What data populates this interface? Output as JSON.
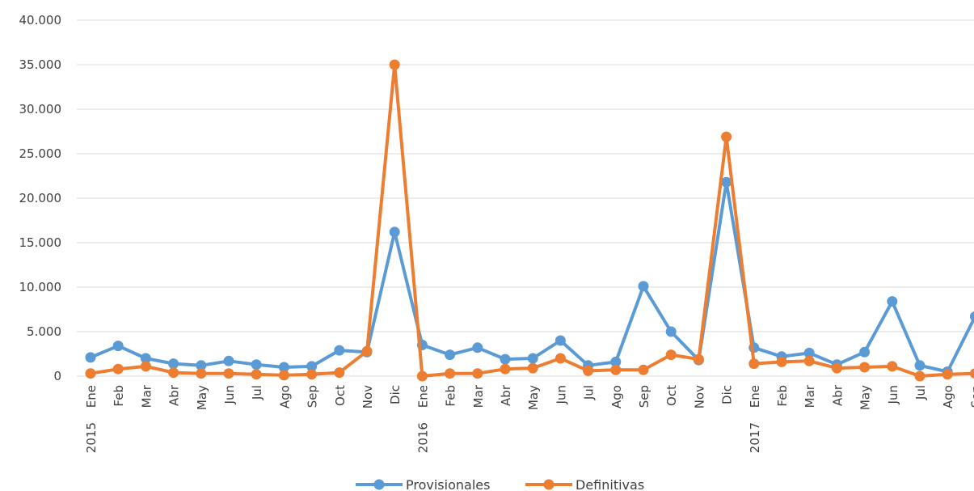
{
  "chart_data": {
    "type": "line",
    "title": "",
    "xlabel": "",
    "ylabel": "",
    "ylim": [
      0,
      40000
    ],
    "yticks": [
      0,
      5000,
      10000,
      15000,
      20000,
      25000,
      30000,
      35000,
      40000
    ],
    "ytick_labels": [
      "0",
      "5.000",
      "10.000",
      "15.000",
      "20.000",
      "25.000",
      "30.000",
      "35.000",
      "40.000"
    ],
    "grid": true,
    "legend_position": "bottom",
    "categories": [
      "Ene",
      "Feb",
      "Mar",
      "Abr",
      "May",
      "Jun",
      "Jul",
      "Ago",
      "Sep",
      "Oct",
      "Nov",
      "Dic",
      "Ene",
      "Feb",
      "Mar",
      "Abr",
      "May",
      "Jun",
      "Jul",
      "Ago",
      "Sep",
      "Oct",
      "Nov",
      "Dic",
      "Ene",
      "Feb",
      "Mar",
      "Abr",
      "May",
      "Jun",
      "Jul",
      "Ago",
      "Sep"
    ],
    "year_labels": [
      {
        "label": "2015",
        "category_index": 0
      },
      {
        "label": "2016",
        "category_index": 12
      },
      {
        "label": "2017",
        "category_index": 24
      }
    ],
    "series": [
      {
        "name": "Provisionales",
        "color": "#5B9BD5",
        "values": [
          2100,
          3400,
          2000,
          1400,
          1200,
          1700,
          1300,
          1000,
          1100,
          2900,
          2700,
          16200,
          3500,
          2400,
          3200,
          1900,
          2000,
          4000,
          1200,
          1600,
          10100,
          5000,
          1800,
          21800,
          3200,
          2200,
          2600,
          1300,
          2700,
          8400,
          1200,
          500,
          6700
        ]
      },
      {
        "name": "Definitivas",
        "color": "#ED7D31",
        "values": [
          300,
          800,
          1100,
          400,
          300,
          300,
          200,
          100,
          200,
          400,
          2800,
          35000,
          0,
          300,
          300,
          800,
          900,
          2000,
          600,
          700,
          700,
          2400,
          1900,
          26900,
          1400,
          1600,
          1700,
          900,
          1000,
          1100,
          0,
          200,
          300
        ]
      }
    ]
  }
}
